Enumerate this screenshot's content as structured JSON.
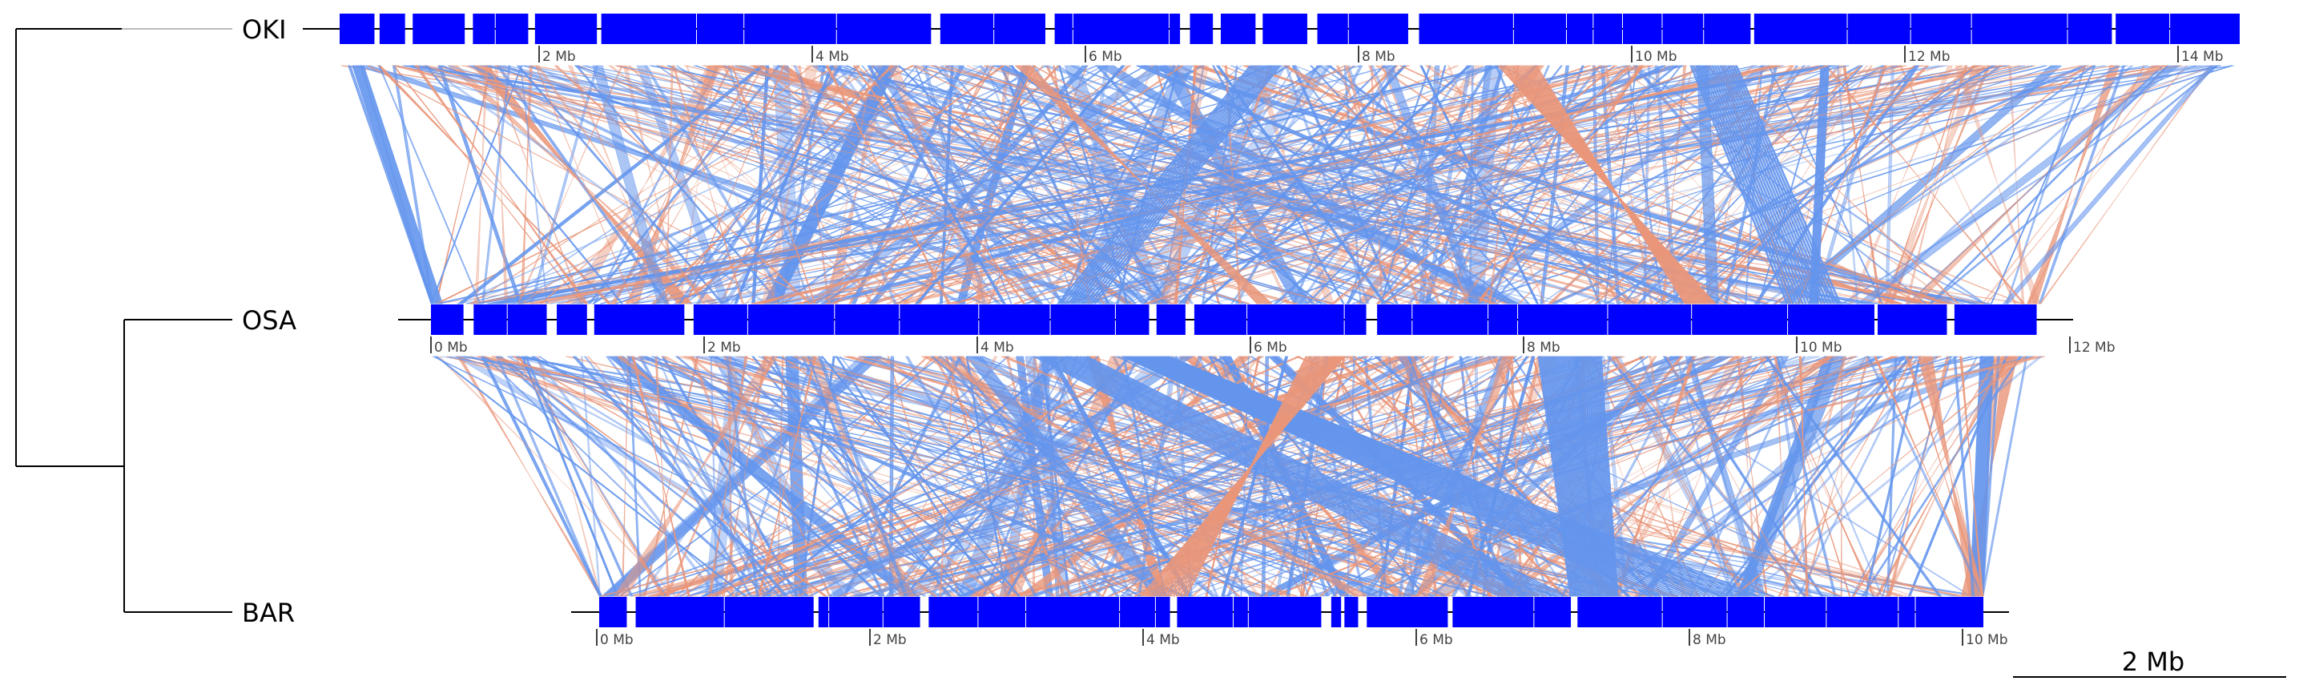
{
  "genomes": [
    {
      "name": "OKI",
      "length_mb": 14.4,
      "ticks": [
        {
          "mb": 2,
          "label": "2 Mb"
        },
        {
          "mb": 4,
          "label": "4 Mb"
        },
        {
          "mb": 6,
          "label": "6 Mb"
        },
        {
          "mb": 8,
          "label": "8 Mb"
        },
        {
          "mb": 10,
          "label": "10 Mb"
        },
        {
          "mb": 12,
          "label": "12 Mb"
        },
        {
          "mb": 14,
          "label": "14 Mb"
        }
      ]
    },
    {
      "name": "OSA",
      "length_mb": 11.9,
      "ticks": [
        {
          "mb": 0,
          "label": "0 Mb"
        },
        {
          "mb": 2,
          "label": "2 Mb"
        },
        {
          "mb": 4,
          "label": "4 Mb"
        },
        {
          "mb": 6,
          "label": "6 Mb"
        },
        {
          "mb": 8,
          "label": "8 Mb"
        },
        {
          "mb": 10,
          "label": "10 Mb"
        },
        {
          "mb": 12,
          "label": "12 Mb"
        }
      ]
    },
    {
      "name": "BAR",
      "length_mb": 10.25,
      "ticks": [
        {
          "mb": 0,
          "label": "0 Mb"
        },
        {
          "mb": 2,
          "label": "2 Mb"
        },
        {
          "mb": 4,
          "label": "4 Mb"
        },
        {
          "mb": 6,
          "label": "6 Mb"
        },
        {
          "mb": 8,
          "label": "8 Mb"
        },
        {
          "mb": 10,
          "label": "10 Mb"
        }
      ]
    }
  ],
  "scale_bar": {
    "label": "2 Mb",
    "mb": 2
  },
  "colors": {
    "forward": "#6495ED",
    "inverted": "#E9967A",
    "block": "#0000FF",
    "line": "#000000",
    "tick_text": "#444444"
  }
}
